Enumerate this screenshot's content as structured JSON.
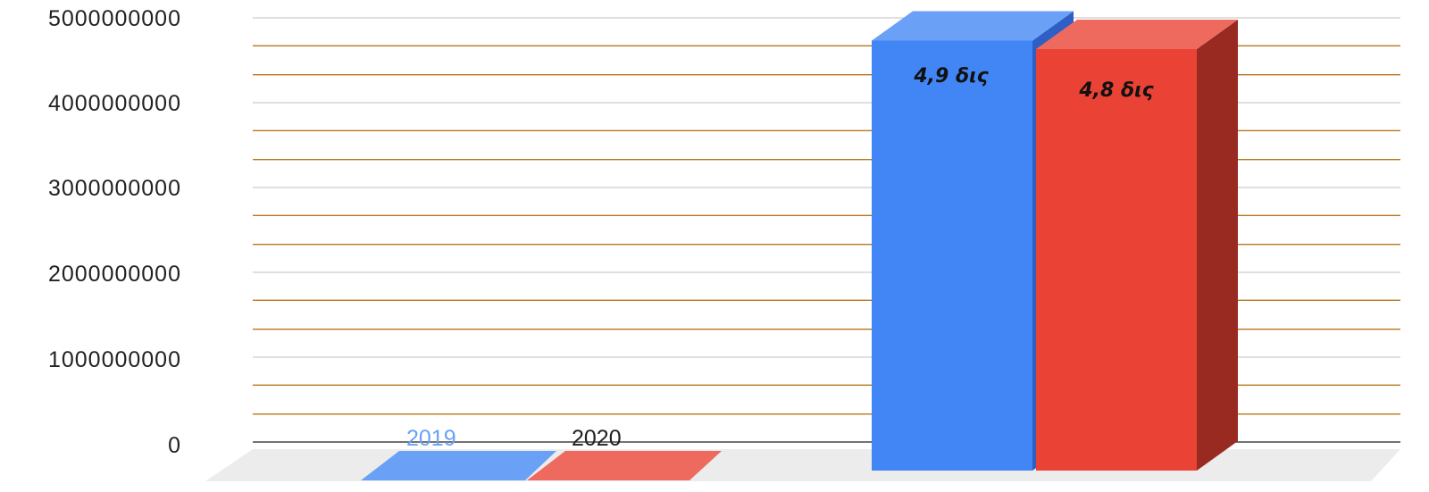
{
  "chart_data": {
    "type": "bar",
    "categories": [
      ""
    ],
    "series": [
      {
        "name": "2019",
        "values": [
          4900000000
        ],
        "label": "4,9 δις",
        "color": "#4285f4",
        "side_color": "#2f5fc4",
        "top_color": "#6aa1f7"
      },
      {
        "name": "2020",
        "values": [
          4800000000
        ],
        "label": "4,8 δις",
        "color": "#ea4335",
        "side_color": "#982a22",
        "top_color": "#ee6a5e"
      }
    ],
    "title": "",
    "xlabel": "",
    "ylabel": "",
    "ylim": [
      0,
      5000000000
    ],
    "yticks": [
      "0",
      "1000000000",
      "2000000000",
      "3000000000",
      "4000000000",
      "5000000000"
    ],
    "grid": true,
    "major_grid_color": "#cccccc",
    "minor_grid_color": "#b8761a",
    "legend_position": "bottom-left",
    "three_d": true
  }
}
